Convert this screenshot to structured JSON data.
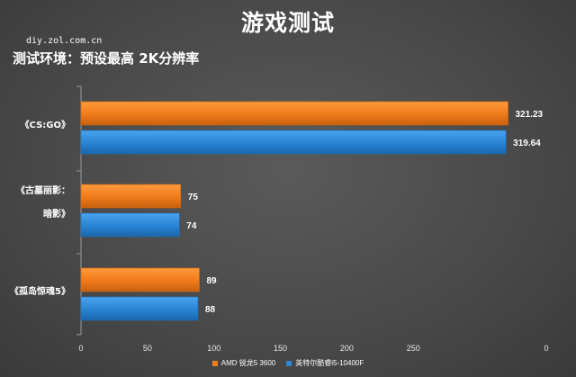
{
  "page": {
    "title": "游戏测试",
    "watermark": "diy.zol.com.cn",
    "subtitle": "测试环境：预设最高 2K分辨率"
  },
  "chart_data": {
    "type": "bar",
    "orientation": "horizontal",
    "title": "游戏测试",
    "categories": [
      {
        "lines": [
          "《CS:GO》"
        ]
      },
      {
        "lines": [
          "《古墓丽影：",
          "暗影》"
        ]
      },
      {
        "lines": [
          "《孤岛惊魂5》"
        ]
      }
    ],
    "series": [
      {
        "name": "AMD 锐龙5 3600",
        "color": "#f07d1d",
        "values": [
          321.23,
          75,
          89
        ]
      },
      {
        "name": "英特尔酷睿i5-10400F",
        "color": "#2b86d6",
        "values": [
          319.64,
          74,
          88
        ]
      }
    ],
    "x_ticks": [
      "0",
      "50",
      "100",
      "150",
      "200",
      "250",
      "0"
    ],
    "xlim": [
      0,
      350
    ],
    "grid": false,
    "legend_position": "bottom-center"
  }
}
